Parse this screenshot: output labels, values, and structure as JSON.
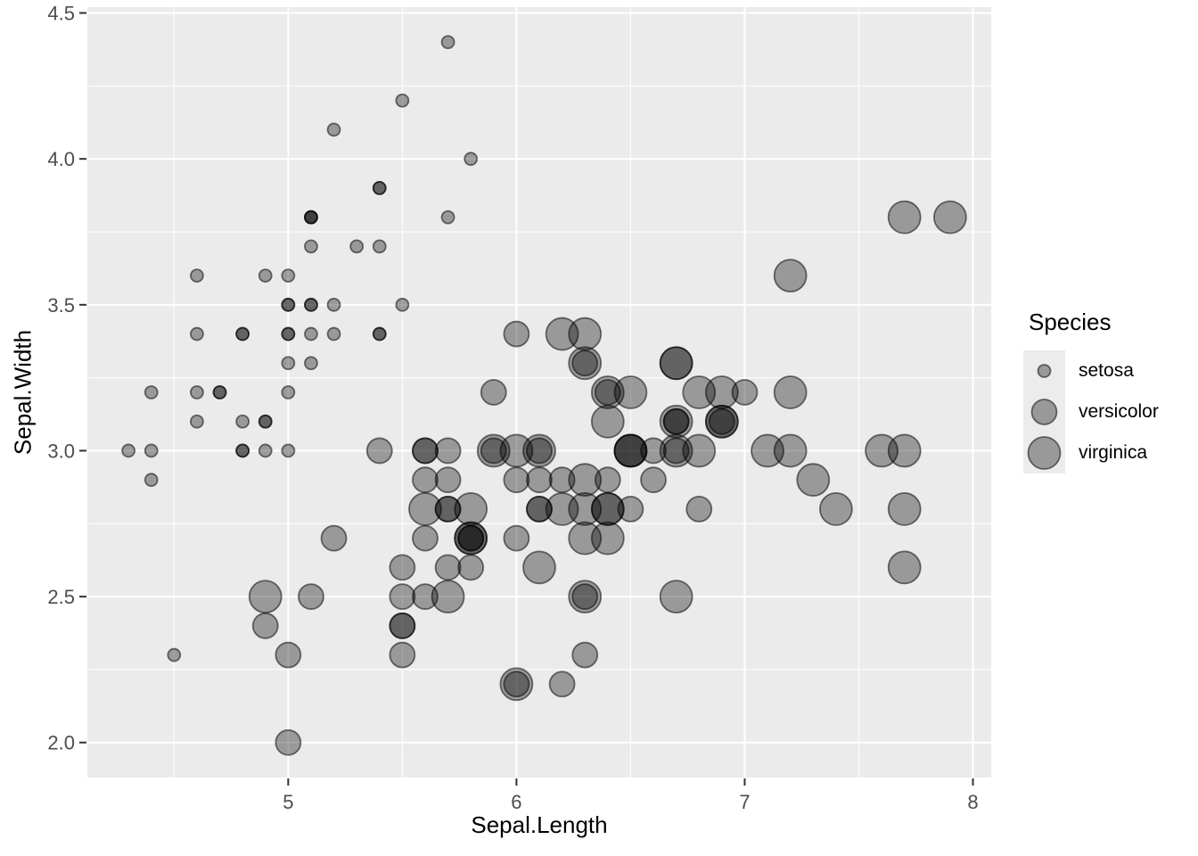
{
  "figure": {
    "background": "#ffffff"
  },
  "legend": {
    "title": "Species",
    "position": "right"
  },
  "chart_data": {
    "type": "scatter",
    "title": "",
    "xlabel": "Sepal.Length",
    "ylabel": "Sepal.Width",
    "xlim": [
      4.12,
      8.08
    ],
    "ylim": [
      1.88,
      4.52
    ],
    "x_ticks": {
      "values": [
        5,
        6,
        7,
        8
      ],
      "labels": [
        "5",
        "6",
        "7",
        "8"
      ]
    },
    "y_ticks": {
      "values": [
        2.0,
        2.5,
        3.0,
        3.5,
        4.0,
        4.5
      ],
      "labels": [
        "2.0",
        "2.5",
        "3.0",
        "3.5",
        "4.0",
        "4.5"
      ]
    },
    "x_minor": [
      4.5,
      5.5,
      6.5,
      7.5
    ],
    "y_minor": [
      2.25,
      2.75,
      3.25,
      3.75,
      4.25
    ],
    "grid": true,
    "legend_position": "right",
    "size_by": "Species",
    "style": {
      "panel_bg": "#ebebeb",
      "grid_major_color": "#ffffff",
      "grid_major_width": 2,
      "grid_minor_color": "#ffffff",
      "grid_minor_width": 1,
      "tick_mark_color": "#333333",
      "tick_label_color": "#4d4d4d",
      "point_color": "#000000",
      "point_fill_opacity": 0.35,
      "point_stroke_opacity": 0.52
    },
    "series": [
      {
        "name": "setosa",
        "radius_px": 7,
        "points": [
          [
            5.1,
            3.5
          ],
          [
            4.9,
            3.0
          ],
          [
            4.7,
            3.2
          ],
          [
            4.6,
            3.1
          ],
          [
            5.0,
            3.6
          ],
          [
            5.4,
            3.9
          ],
          [
            4.6,
            3.4
          ],
          [
            5.0,
            3.4
          ],
          [
            4.4,
            2.9
          ],
          [
            4.9,
            3.1
          ],
          [
            5.4,
            3.7
          ],
          [
            4.8,
            3.4
          ],
          [
            4.8,
            3.0
          ],
          [
            4.3,
            3.0
          ],
          [
            5.8,
            4.0
          ],
          [
            5.7,
            4.4
          ],
          [
            5.4,
            3.9
          ],
          [
            5.1,
            3.5
          ],
          [
            5.7,
            3.8
          ],
          [
            5.1,
            3.8
          ],
          [
            5.4,
            3.4
          ],
          [
            5.1,
            3.7
          ],
          [
            4.6,
            3.6
          ],
          [
            5.1,
            3.3
          ],
          [
            4.8,
            3.4
          ],
          [
            5.0,
            3.0
          ],
          [
            5.0,
            3.4
          ],
          [
            5.2,
            3.5
          ],
          [
            5.2,
            3.4
          ],
          [
            4.7,
            3.2
          ],
          [
            4.8,
            3.1
          ],
          [
            5.4,
            3.4
          ],
          [
            5.2,
            4.1
          ],
          [
            5.5,
            4.2
          ],
          [
            4.9,
            3.1
          ],
          [
            5.0,
            3.2
          ],
          [
            5.5,
            3.5
          ],
          [
            4.9,
            3.6
          ],
          [
            4.4,
            3.0
          ],
          [
            5.1,
            3.4
          ],
          [
            5.0,
            3.5
          ],
          [
            4.5,
            2.3
          ],
          [
            4.4,
            3.2
          ],
          [
            5.0,
            3.5
          ],
          [
            5.1,
            3.8
          ],
          [
            4.8,
            3.0
          ],
          [
            5.1,
            3.8
          ],
          [
            4.6,
            3.2
          ],
          [
            5.3,
            3.7
          ],
          [
            5.0,
            3.3
          ]
        ]
      },
      {
        "name": "versicolor",
        "radius_px": 14,
        "points": [
          [
            7.0,
            3.2
          ],
          [
            6.4,
            3.2
          ],
          [
            6.9,
            3.1
          ],
          [
            5.5,
            2.3
          ],
          [
            6.5,
            2.8
          ],
          [
            5.7,
            2.8
          ],
          [
            6.3,
            3.3
          ],
          [
            4.9,
            2.4
          ],
          [
            6.6,
            2.9
          ],
          [
            5.2,
            2.7
          ],
          [
            5.0,
            2.0
          ],
          [
            5.9,
            3.0
          ],
          [
            6.0,
            2.2
          ],
          [
            6.1,
            2.9
          ],
          [
            5.6,
            2.9
          ],
          [
            6.7,
            3.1
          ],
          [
            5.6,
            3.0
          ],
          [
            5.8,
            2.7
          ],
          [
            6.2,
            2.2
          ],
          [
            5.6,
            2.5
          ],
          [
            5.9,
            3.2
          ],
          [
            6.1,
            2.8
          ],
          [
            6.3,
            2.5
          ],
          [
            6.1,
            2.8
          ],
          [
            6.4,
            2.9
          ],
          [
            6.6,
            3.0
          ],
          [
            6.8,
            2.8
          ],
          [
            6.7,
            3.0
          ],
          [
            6.0,
            2.9
          ],
          [
            5.7,
            2.6
          ],
          [
            5.5,
            2.4
          ],
          [
            5.5,
            2.4
          ],
          [
            5.8,
            2.7
          ],
          [
            6.0,
            2.7
          ],
          [
            5.4,
            3.0
          ],
          [
            6.0,
            3.4
          ],
          [
            6.7,
            3.1
          ],
          [
            6.3,
            2.3
          ],
          [
            5.6,
            3.0
          ],
          [
            5.5,
            2.5
          ],
          [
            5.5,
            2.6
          ],
          [
            6.1,
            3.0
          ],
          [
            5.8,
            2.6
          ],
          [
            5.0,
            2.3
          ],
          [
            5.6,
            2.7
          ],
          [
            5.7,
            3.0
          ],
          [
            5.7,
            2.9
          ],
          [
            6.2,
            2.9
          ],
          [
            5.1,
            2.5
          ],
          [
            5.7,
            2.8
          ]
        ]
      },
      {
        "name": "virginica",
        "radius_px": 18,
        "points": [
          [
            6.3,
            3.3
          ],
          [
            5.8,
            2.7
          ],
          [
            7.1,
            3.0
          ],
          [
            6.3,
            2.9
          ],
          [
            6.5,
            3.0
          ],
          [
            7.6,
            3.0
          ],
          [
            4.9,
            2.5
          ],
          [
            7.3,
            2.9
          ],
          [
            6.7,
            2.5
          ],
          [
            7.2,
            3.6
          ],
          [
            6.5,
            3.2
          ],
          [
            6.4,
            2.7
          ],
          [
            6.8,
            3.0
          ],
          [
            5.7,
            2.5
          ],
          [
            5.8,
            2.8
          ],
          [
            6.4,
            3.2
          ],
          [
            6.5,
            3.0
          ],
          [
            7.7,
            3.8
          ],
          [
            7.7,
            2.6
          ],
          [
            6.0,
            2.2
          ],
          [
            6.9,
            3.2
          ],
          [
            5.6,
            2.8
          ],
          [
            7.7,
            2.8
          ],
          [
            6.3,
            2.7
          ],
          [
            6.7,
            3.3
          ],
          [
            7.2,
            3.2
          ],
          [
            6.2,
            2.8
          ],
          [
            6.1,
            3.0
          ],
          [
            6.4,
            2.8
          ],
          [
            7.2,
            3.0
          ],
          [
            7.4,
            2.8
          ],
          [
            7.9,
            3.8
          ],
          [
            6.4,
            2.8
          ],
          [
            6.3,
            2.8
          ],
          [
            6.1,
            2.6
          ],
          [
            7.7,
            3.0
          ],
          [
            6.3,
            3.4
          ],
          [
            6.4,
            3.1
          ],
          [
            6.0,
            3.0
          ],
          [
            6.9,
            3.1
          ],
          [
            6.7,
            3.1
          ],
          [
            6.9,
            3.1
          ],
          [
            5.8,
            2.7
          ],
          [
            6.8,
            3.2
          ],
          [
            6.7,
            3.3
          ],
          [
            6.7,
            3.0
          ],
          [
            6.3,
            2.5
          ],
          [
            6.5,
            3.0
          ],
          [
            6.2,
            3.4
          ],
          [
            5.9,
            3.0
          ]
        ]
      }
    ]
  }
}
